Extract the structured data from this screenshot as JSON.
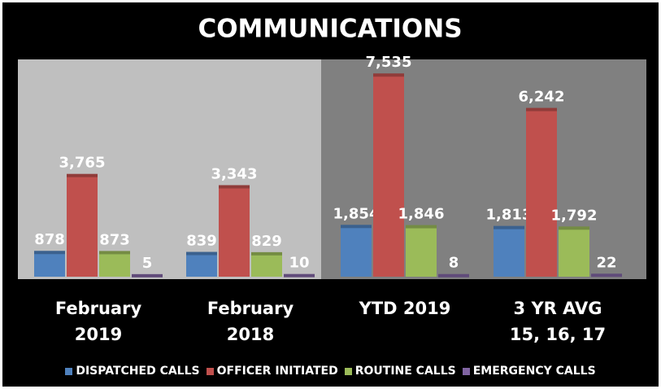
{
  "chart_data": {
    "type": "bar",
    "title": "COMMUNICATIONS",
    "categories": [
      "February 2019",
      "February 2018",
      "YTD 2019",
      "3 YR AVG 15, 16, 17"
    ],
    "series": [
      {
        "name": "DISPATCHED CALLS",
        "color": "#4f81bd",
        "values": [
          878,
          839,
          1854,
          1813
        ],
        "value_labels": [
          "878",
          "839",
          "1,854",
          "1,813"
        ]
      },
      {
        "name": "OFFICER INITIATED",
        "color": "#c0504d",
        "values": [
          3765,
          3343,
          7535,
          6242
        ],
        "value_labels": [
          "3,765",
          "3,343",
          "7,535",
          "6,242"
        ]
      },
      {
        "name": "ROUTINE CALLS",
        "color": "#9bbb59",
        "values": [
          873,
          829,
          1846,
          1792
        ],
        "value_labels": [
          "873",
          "829",
          "1,846",
          "1,792"
        ]
      },
      {
        "name": "EMERGENCY CALLS",
        "color": "#8064a2",
        "values": [
          5,
          10,
          8,
          22
        ],
        "value_labels": [
          "5",
          "10",
          "8",
          "22"
        ]
      }
    ],
    "ylim": [
      0,
      8000
    ],
    "legend": "bottom"
  }
}
